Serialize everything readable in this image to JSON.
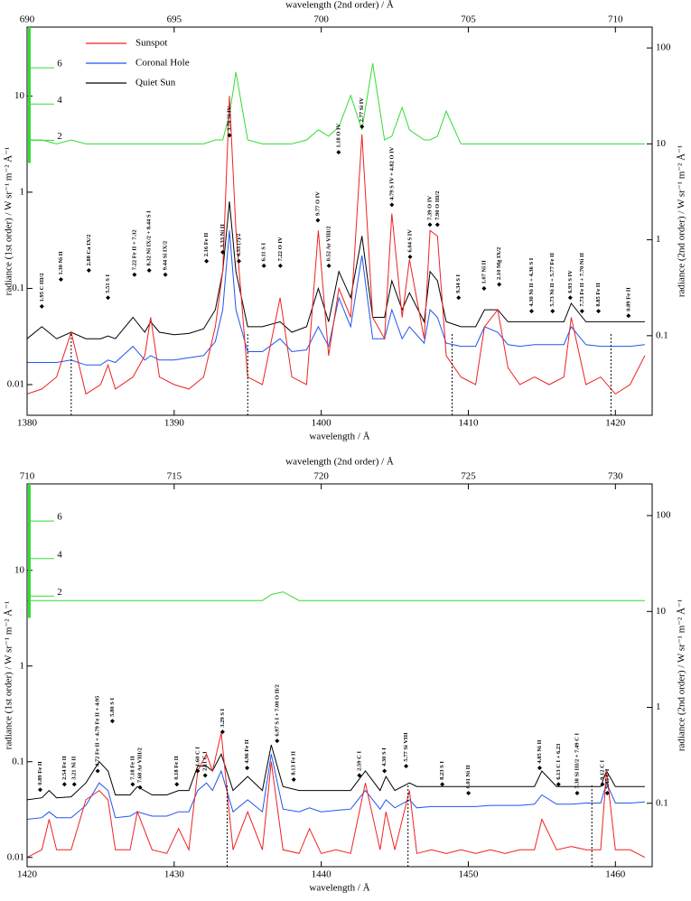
{
  "chart_data": [
    {
      "type": "line",
      "log_scale": true,
      "x2label": "wavelength (2nd order) / Å",
      "xlabel": "wavelength / Å",
      "ylabel": "radiance (1st order) / W sr⁻¹ m⁻² Å⁻¹",
      "y2label": "radiance (2nd order) / W sr⁻¹ m⁻² Å⁻¹",
      "xlim": [
        1380,
        1422.5
      ],
      "xticks": [
        1380,
        1390,
        1400,
        1410,
        1420
      ],
      "x2lim": [
        690,
        711.25
      ],
      "x2ticks": [
        690,
        695,
        700,
        705,
        710
      ],
      "ylim": [
        0.0048,
        52
      ],
      "yticks": [
        0.01,
        0.1,
        1,
        10
      ],
      "y2lim": [
        0.0148,
        165
      ],
      "y2ticks": [
        0.1,
        1,
        10,
        100
      ],
      "y3lim": [
        0.75,
        8.25
      ],
      "y3ticks": [
        2,
        4,
        6
      ],
      "y3color": "#33dd33",
      "legend": "upper left",
      "x": [
        1380,
        1381,
        1382,
        1383,
        1384,
        1385,
        1385.5,
        1386,
        1387.2,
        1388,
        1388.4,
        1389,
        1390,
        1391,
        1392,
        1392.8,
        1393.3,
        1393.76,
        1394.2,
        1395,
        1396,
        1397.2,
        1398,
        1399,
        1399.8,
        1400.5,
        1401.2,
        1402,
        1402.77,
        1403.5,
        1404.3,
        1404.8,
        1405.5,
        1406,
        1407,
        1407.4,
        1407.9,
        1408.5,
        1409.5,
        1410.5,
        1411.1,
        1412,
        1412.7,
        1413.5,
        1414.5,
        1415.5,
        1416.5,
        1417,
        1418,
        1419,
        1420,
        1421,
        1422
      ],
      "series": [
        {
          "name": "Sunspot",
          "color": "#ee2222",
          "values": [
            0.008,
            0.009,
            0.012,
            0.035,
            0.008,
            0.01,
            0.016,
            0.009,
            0.012,
            0.02,
            0.05,
            0.012,
            0.01,
            0.009,
            0.012,
            0.04,
            0.15,
            10,
            0.4,
            0.012,
            0.01,
            0.08,
            0.012,
            0.01,
            0.4,
            0.02,
            0.1,
            0.05,
            4,
            0.05,
            0.03,
            0.6,
            0.05,
            0.2,
            0.03,
            0.4,
            0.35,
            0.02,
            0.012,
            0.01,
            0.04,
            0.06,
            0.015,
            0.01,
            0.012,
            0.01,
            0.012,
            0.05,
            0.01,
            0.012,
            0.008,
            0.01,
            0.02
          ]
        },
        {
          "name": "Coronal Hole",
          "color": "#2255ee",
          "values": [
            0.017,
            0.017,
            0.017,
            0.018,
            0.016,
            0.016,
            0.018,
            0.017,
            0.025,
            0.018,
            0.02,
            0.018,
            0.018,
            0.019,
            0.02,
            0.028,
            0.06,
            0.4,
            0.06,
            0.022,
            0.022,
            0.03,
            0.022,
            0.023,
            0.04,
            0.025,
            0.08,
            0.04,
            0.22,
            0.03,
            0.03,
            0.06,
            0.03,
            0.04,
            0.027,
            0.06,
            0.05,
            0.027,
            0.025,
            0.025,
            0.04,
            0.035,
            0.026,
            0.025,
            0.026,
            0.026,
            0.026,
            0.04,
            0.026,
            0.025,
            0.025,
            0.025,
            0.026
          ]
        },
        {
          "name": "Quiet Sun",
          "color": "#000000",
          "values": [
            0.03,
            0.04,
            0.03,
            0.035,
            0.03,
            0.03,
            0.032,
            0.03,
            0.05,
            0.035,
            0.045,
            0.035,
            0.033,
            0.034,
            0.038,
            0.06,
            0.15,
            0.8,
            0.15,
            0.04,
            0.04,
            0.045,
            0.035,
            0.04,
            0.1,
            0.045,
            0.15,
            0.08,
            0.35,
            0.05,
            0.05,
            0.12,
            0.06,
            0.09,
            0.045,
            0.15,
            0.12,
            0.045,
            0.04,
            0.04,
            0.06,
            0.06,
            0.045,
            0.045,
            0.045,
            0.045,
            0.045,
            0.07,
            0.045,
            0.045,
            0.045,
            0.045,
            0.045
          ]
        },
        {
          "color": "#33dd33",
          "axis": "y2",
          "values": [
            11,
            11,
            10,
            11,
            10,
            10,
            10,
            10,
            10,
            10,
            10,
            10,
            10,
            10,
            10,
            11,
            11,
            20,
            56,
            11,
            10,
            10,
            10,
            11,
            14,
            12,
            15,
            32,
            14,
            69,
            11,
            12,
            24,
            14,
            11,
            11,
            12,
            22,
            10,
            10,
            10,
            10,
            10,
            10,
            10,
            10,
            10,
            10,
            10,
            10,
            10,
            10,
            10
          ]
        }
      ],
      "dotted_lines": [
        1383,
        1395,
        1408.9,
        1419.7
      ],
      "annotations": [
        {
          "text": "1.95 C III/2",
          "x": 1381,
          "y": 0.065
        },
        {
          "text": "1.30 Ni II",
          "x": 1382.3,
          "y": 0.124
        },
        {
          "text": "2.88 Ca IX/2",
          "x": 1384.2,
          "y": 0.154
        },
        {
          "text": "5.51 S I",
          "x": 1385.5,
          "y": 0.08
        },
        {
          "text": "7.22 Fe II + 7.32",
          "x": 1387.3,
          "y": 0.139
        },
        {
          "text": "8.32 Ni IX/2 + 8.44 S I",
          "x": 1388.3,
          "y": 0.154
        },
        {
          "text": "9.44 Si IX/2",
          "x": 1389.4,
          "y": 0.139
        },
        {
          "text": "2.16 Fe II",
          "x": 1392.2,
          "y": 0.192
        },
        {
          "text": "3.33 Ni II",
          "x": 1393.3,
          "y": 0.238
        },
        {
          "text": "3.76 Si IV",
          "x": 1393.76,
          "y": 3.9
        },
        {
          "text": "4.33 (?)/2",
          "x": 1394.4,
          "y": 0.192
        },
        {
          "text": "6.11 S I",
          "x": 1396.1,
          "y": 0.172
        },
        {
          "text": "7.22 O IV",
          "x": 1397.22,
          "y": 0.172
        },
        {
          "text": "9.77 O IV",
          "x": 1399.77,
          "y": 0.51
        },
        {
          "text": "0.52 Ar VIII/2",
          "x": 1400.52,
          "y": 0.172
        },
        {
          "text": "1.18 O IV",
          "x": 1401.18,
          "y": 2.6
        },
        {
          "text": "2.77 Si IV",
          "x": 1402.77,
          "y": 4.8
        },
        {
          "text": "4.79 S IV + 4.82 O IV",
          "x": 1404.8,
          "y": 0.74
        },
        {
          "text": "6.04 S IV",
          "x": 1406.04,
          "y": 0.213
        },
        {
          "text": "7.39 O IV",
          "x": 1407.39,
          "y": 0.46
        },
        {
          "text": "7.90 O III/2",
          "x": 1407.9,
          "y": 0.46
        },
        {
          "text": "9.34 S I",
          "x": 1409.34,
          "y": 0.08
        },
        {
          "text": "1.07 Ni II",
          "x": 1411.07,
          "y": 0.1
        },
        {
          "text": "2.10 Mg IX/2",
          "x": 1412.1,
          "y": 0.11
        },
        {
          "text": "4.30 Ni II + 4.36 S I",
          "x": 1414.3,
          "y": 0.058
        },
        {
          "text": "5.73 Ni II + 5.77 Fe II",
          "x": 1415.73,
          "y": 0.058
        },
        {
          "text": "6.93 S IV",
          "x": 1416.93,
          "y": 0.08
        },
        {
          "text": "7.73 Fe II + 7.70 Ni II",
          "x": 1417.73,
          "y": 0.058
        },
        {
          "text": "8.85 Fe II",
          "x": 1418.85,
          "y": 0.058
        },
        {
          "text": "0.89 Fe II",
          "x": 1420.89,
          "y": 0.052
        }
      ]
    },
    {
      "type": "line",
      "log_scale": true,
      "x2label": "wavelength (2nd order) / Å",
      "xlabel": "wavelength / Å",
      "ylabel": "radiance (1st order) / W sr⁻¹ m⁻² Å⁻¹",
      "y2label": "radiance (2nd order) / W sr⁻¹ m⁻² Å⁻¹",
      "xlim": [
        1420,
        1462.5
      ],
      "xticks": [
        1420,
        1430,
        1440,
        1450,
        1460
      ],
      "x2lim": [
        710,
        731.25
      ],
      "x2ticks": [
        710,
        715,
        720,
        725,
        730
      ],
      "ylim": [
        0.008,
        80
      ],
      "yticks": [
        0.01,
        0.1,
        1,
        10
      ],
      "y2lim": [
        0.0218,
        214
      ],
      "y2ticks": [
        0.1,
        1,
        10,
        100
      ],
      "y3lim": [
        0.84,
        7.98
      ],
      "y3ticks": [
        2,
        4,
        6
      ],
      "y3color": "#33dd33",
      "x": [
        1420,
        1421,
        1421.5,
        1422,
        1423,
        1424,
        1424.9,
        1425.5,
        1426,
        1427,
        1427.5,
        1428.5,
        1429.5,
        1430.3,
        1431,
        1431.6,
        1432.2,
        1432.6,
        1433.2,
        1434,
        1435,
        1436,
        1436.6,
        1437.4,
        1438.5,
        1439.2,
        1440,
        1441,
        1442,
        1443,
        1444,
        1444.4,
        1445,
        1446,
        1446.5,
        1447.5,
        1448.5,
        1449.5,
        1450.5,
        1451.5,
        1452.5,
        1453.5,
        1454.5,
        1455,
        1456,
        1457,
        1458,
        1459,
        1459.4,
        1460,
        1461,
        1462
      ],
      "series": [
        {
          "color": "#ee2222",
          "values": [
            0.01,
            0.012,
            0.025,
            0.012,
            0.012,
            0.04,
            0.05,
            0.04,
            0.012,
            0.012,
            0.03,
            0.012,
            0.011,
            0.02,
            0.012,
            0.08,
            0.12,
            0.08,
            0.2,
            0.012,
            0.03,
            0.012,
            0.1,
            0.012,
            0.011,
            0.02,
            0.011,
            0.012,
            0.011,
            0.06,
            0.012,
            0.03,
            0.012,
            0.05,
            0.011,
            0.012,
            0.011,
            0.012,
            0.011,
            0.012,
            0.011,
            0.012,
            0.012,
            0.025,
            0.012,
            0.013,
            0.012,
            0.012,
            0.08,
            0.012,
            0.012,
            0.01
          ]
        },
        {
          "color": "#2255ee",
          "values": [
            0.025,
            0.026,
            0.03,
            0.026,
            0.026,
            0.035,
            0.06,
            0.05,
            0.026,
            0.027,
            0.03,
            0.027,
            0.027,
            0.03,
            0.03,
            0.05,
            0.06,
            0.05,
            0.08,
            0.03,
            0.04,
            0.03,
            0.12,
            0.032,
            0.03,
            0.033,
            0.03,
            0.031,
            0.032,
            0.05,
            0.032,
            0.04,
            0.033,
            0.04,
            0.033,
            0.034,
            0.034,
            0.034,
            0.034,
            0.035,
            0.035,
            0.035,
            0.036,
            0.045,
            0.036,
            0.036,
            0.037,
            0.037,
            0.06,
            0.037,
            0.037,
            0.038
          ]
        },
        {
          "color": "#000000",
          "values": [
            0.04,
            0.042,
            0.05,
            0.042,
            0.043,
            0.06,
            0.1,
            0.08,
            0.045,
            0.045,
            0.055,
            0.045,
            0.045,
            0.05,
            0.05,
            0.09,
            0.09,
            0.08,
            0.12,
            0.05,
            0.07,
            0.05,
            0.15,
            0.055,
            0.05,
            0.05,
            0.05,
            0.05,
            0.05,
            0.08,
            0.05,
            0.07,
            0.05,
            0.06,
            0.055,
            0.055,
            0.055,
            0.055,
            0.055,
            0.055,
            0.055,
            0.055,
            0.055,
            0.08,
            0.055,
            0.055,
            0.055,
            0.055,
            0.08,
            0.055,
            0.055,
            0.055
          ]
        },
        {
          "color": "#33dd33",
          "axis": "y2",
          "values": [
            13,
            13,
            13,
            13,
            13,
            13,
            13,
            13,
            13,
            13,
            13,
            13,
            13,
            13,
            13,
            13,
            13,
            13,
            13,
            13,
            13,
            13,
            15,
            16,
            13,
            13,
            13,
            13,
            13,
            13,
            13,
            13,
            13,
            13,
            13,
            13,
            13,
            13,
            13,
            13,
            13,
            13,
            13,
            13,
            13,
            13,
            13,
            13,
            13,
            13,
            13,
            13
          ]
        }
      ],
      "dotted_lines": [
        1433.6,
        1445.9,
        1458.4
      ],
      "annotations": [
        {
          "text": "0.89 Fe II",
          "x": 1420.89,
          "y": 0.051
        },
        {
          "text": "2.54 Fe II",
          "x": 1422.54,
          "y": 0.058
        },
        {
          "text": "3.21 Ni II",
          "x": 1423.21,
          "y": 0.058
        },
        {
          "text": "4.72 Fe II + 4.79 Fe II + 4.95",
          "x": 1424.8,
          "y": 0.08
        },
        {
          "text": "5.80 S I",
          "x": 1425.8,
          "y": 0.266
        },
        {
          "text": "7.18 Fe II",
          "x": 1427.18,
          "y": 0.058
        },
        {
          "text": "7.68 Ar VIII/2",
          "x": 1427.68,
          "y": 0.054
        },
        {
          "text": "0.18 Fe II",
          "x": 1430.18,
          "y": 0.058
        },
        {
          "text": "1.60 C I",
          "x": 1431.6,
          "y": 0.08
        },
        {
          "text": "2.11 C I",
          "x": 1432.11,
          "y": 0.072
        },
        {
          "text": "3.29 S I",
          "x": 1433.29,
          "y": 0.205
        },
        {
          "text": "4.96 Fe II",
          "x": 1434.96,
          "y": 0.086
        },
        {
          "text": "6.97 S I + 7.00 O II/2",
          "x": 1437,
          "y": 0.165
        },
        {
          "text": "8.13 Fe II",
          "x": 1438.13,
          "y": 0.065
        },
        {
          "text": "2.59 C I",
          "x": 1442.59,
          "y": 0.072
        },
        {
          "text": "4.30 S I",
          "x": 1444.3,
          "y": 0.08
        },
        {
          "text": "5.77 Si VIII",
          "x": 1445.77,
          "y": 0.09
        },
        {
          "text": "8.23 S I",
          "x": 1448.23,
          "y": 0.058
        },
        {
          "text": "0.01 Ni II",
          "x": 1450.01,
          "y": 0.047
        },
        {
          "text": "4.85 Ni II",
          "x": 1454.85,
          "y": 0.086
        },
        {
          "text": "6.13 C I + 6.23",
          "x": 1456.13,
          "y": 0.058
        },
        {
          "text": "7.38 Si III/2 + 7.49 C I",
          "x": 1457.4,
          "y": 0.047
        },
        {
          "text": "9.12 C I",
          "x": 1459.12,
          "y": 0.058
        },
        {
          "text": "9.45 C I",
          "x": 1459.45,
          "y": 0.047
        }
      ]
    }
  ]
}
